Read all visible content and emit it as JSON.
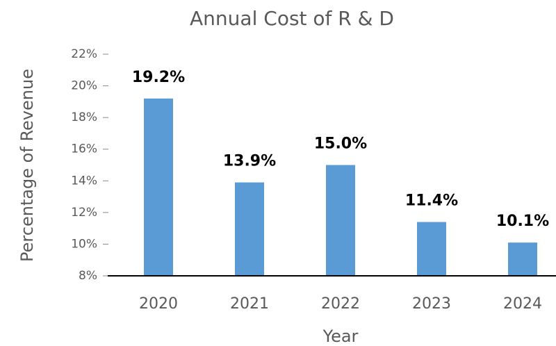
{
  "chart_data": {
    "type": "bar",
    "title": "Annual Cost of R & D",
    "x_label": "Year",
    "y_label": "Percentage of Revenue",
    "categories": [
      "2020",
      "2021",
      "2022",
      "2023",
      "2024"
    ],
    "values": [
      19.2,
      13.9,
      15.0,
      11.4,
      10.1
    ],
    "value_labels": [
      "19.2%",
      "13.9%",
      "15.0%",
      "11.4%",
      "10.1%"
    ],
    "color": "#5b9bd5",
    "ylim": [
      8,
      22
    ],
    "yticks": [
      {
        "value": 8,
        "label": "8%"
      },
      {
        "value": 10,
        "label": "10%"
      },
      {
        "value": 12,
        "label": "12%"
      },
      {
        "value": 14,
        "label": "14%"
      },
      {
        "value": 16,
        "label": "16%"
      },
      {
        "value": 18,
        "label": "18%"
      },
      {
        "value": 20,
        "label": "20%"
      },
      {
        "value": 22,
        "label": "22%"
      }
    ]
  }
}
